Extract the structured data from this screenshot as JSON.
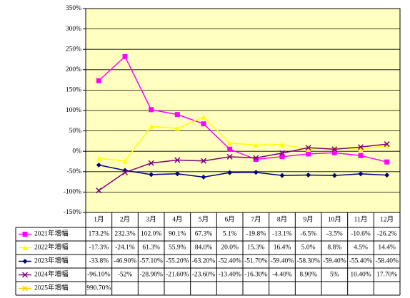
{
  "chart_data": {
    "type": "line",
    "categories": [
      "1月",
      "2月",
      "3月",
      "4月",
      "5月",
      "6月",
      "7月",
      "8月",
      "9月",
      "10月",
      "11月",
      "12月"
    ],
    "ylim": [
      -150,
      350
    ],
    "yticks": [
      {
        "value": -150,
        "label": "-150%"
      },
      {
        "value": -100,
        "label": "-100%"
      },
      {
        "value": -50,
        "label": "-50%"
      },
      {
        "value": 0,
        "label": "0%"
      },
      {
        "value": 50,
        "label": "50%"
      },
      {
        "value": 100,
        "label": "100%"
      },
      {
        "value": 150,
        "label": "150%"
      },
      {
        "value": 200,
        "label": "200%"
      },
      {
        "value": 250,
        "label": "250%"
      },
      {
        "value": 300,
        "label": "300%"
      },
      {
        "value": 350,
        "label": "350%"
      }
    ],
    "grid": true,
    "series": [
      {
        "name": "2021年增幅",
        "color": "#ff00ff",
        "marker": "square",
        "values": [
          173.2,
          232.3,
          102.0,
          90.1,
          67.3,
          5.1,
          -19.8,
          -13.1,
          -6.5,
          -3.5,
          -10.6,
          -26.2
        ],
        "value_labels": [
          "173.2%",
          "232.3%",
          "102.0%",
          "90.1%",
          "67.3%",
          "5.1%",
          "-19.8%",
          "-13.1%",
          "-6.5%",
          "-3.5%",
          "-10.6%",
          "-26.2%"
        ]
      },
      {
        "name": "2022年增幅",
        "color": "#ffff00",
        "marker": "triangle",
        "values": [
          -17.3,
          -24.1,
          61.3,
          55.9,
          84.0,
          20.0,
          15.3,
          16.4,
          5.0,
          8.8,
          4.5,
          14.4
        ],
        "value_labels": [
          "-17.3%",
          "-24.1%",
          "61.3%",
          "55.9%",
          "84.0%",
          "20.0%",
          "15.3%",
          "16.4%",
          "5.0%",
          "8.8%",
          "4.5%",
          "14.4%"
        ]
      },
      {
        "name": "2023年增幅",
        "color": "#000080",
        "marker": "diamond",
        "values": [
          -33.8,
          -46.9,
          -57.1,
          -55.2,
          -63.2,
          -52.4,
          -51.7,
          -59.4,
          -58.3,
          -59.4,
          -55.4,
          -58.4
        ],
        "value_labels": [
          "-33.8%",
          "-46.90%",
          "-57.10%",
          "-55.20%",
          "-63.20%",
          "-52.40%",
          "-51.70%",
          "-59.40%",
          "-58.30%",
          "-59.40%",
          "-55.40%",
          "-58.40%"
        ]
      },
      {
        "name": "2024年增幅",
        "color": "#800080",
        "marker": "x",
        "values": [
          -96.1,
          -52,
          -28.9,
          -21.6,
          -23.6,
          -13.4,
          -16.3,
          -4.4,
          8.9,
          5,
          10.4,
          17.7
        ],
        "value_labels": [
          "-96.10%",
          "-52%",
          "-28.90%",
          "-21.60%",
          "-23.60%",
          "-13.40%",
          "-16.30%",
          "-4.40%",
          "8.90%",
          "5%",
          "10.40%",
          "17.70%"
        ]
      },
      {
        "name": "2025年增幅",
        "color": "#ffcc00",
        "marker": "x",
        "values": [
          990.7,
          null,
          null,
          null,
          null,
          null,
          null,
          null,
          null,
          null,
          null,
          null
        ],
        "value_labels": [
          "990.70%",
          null,
          null,
          null,
          null,
          null,
          null,
          null,
          null,
          null,
          null,
          null
        ]
      }
    ]
  }
}
